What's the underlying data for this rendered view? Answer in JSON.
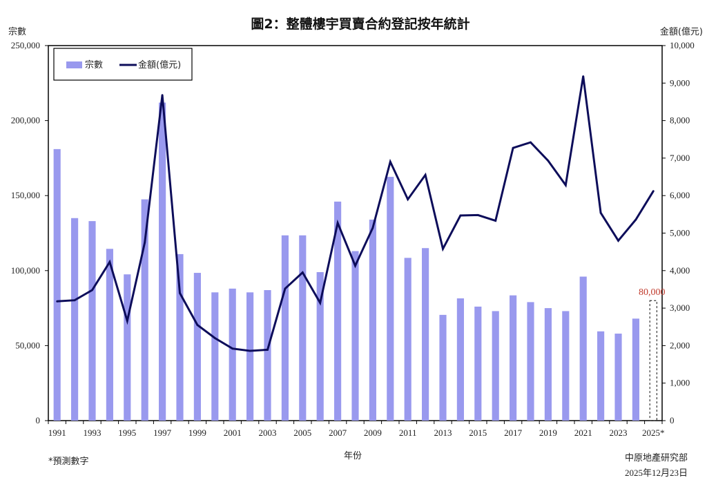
{
  "chart_data": {
    "type": "bar-line",
    "title": "圖2：整體樓宇買賣合約登記按年統計",
    "xlabel": "年份",
    "ylabel_left": "宗數",
    "ylabel_right": "金額(億元)",
    "ylim_left": [
      0,
      250000
    ],
    "ylim_right": [
      0,
      10000
    ],
    "yticks_left": [
      "0",
      "50,000",
      "100,000",
      "150,000",
      "200,000",
      "250,000"
    ],
    "yticks_right": [
      "0",
      "1,000",
      "2,000",
      "3,000",
      "4,000",
      "5,000",
      "6,000",
      "7,000",
      "8,000",
      "9,000",
      "10,000"
    ],
    "x_tick_labels": [
      "1991",
      "1993",
      "1995",
      "1997",
      "1999",
      "2001",
      "2003",
      "2005",
      "2007",
      "2009",
      "2011",
      "2013",
      "2015",
      "2017",
      "2019",
      "2021",
      "2023",
      "2025*"
    ],
    "categories": [
      "1991",
      "1992",
      "1993",
      "1994",
      "1995",
      "1996",
      "1997",
      "1998",
      "1999",
      "2000",
      "2001",
      "2002",
      "2003",
      "2004",
      "2005",
      "2006",
      "2007",
      "2008",
      "2009",
      "2010",
      "2011",
      "2012",
      "2013",
      "2014",
      "2015",
      "2016",
      "2017",
      "2018",
      "2019",
      "2020",
      "2021",
      "2022",
      "2023",
      "2024",
      "2025*"
    ],
    "series": [
      {
        "name": "宗數",
        "kind": "bar",
        "axis": "left",
        "color": "#9999ee",
        "values": [
          181000,
          135000,
          133000,
          114500,
          97500,
          147500,
          212000,
          111000,
          98500,
          85500,
          88000,
          85500,
          87000,
          123500,
          123500,
          99000,
          146000,
          113000,
          134000,
          162500,
          108500,
          115000,
          70500,
          81500,
          76000,
          73000,
          83500,
          79000,
          75000,
          73000,
          96000,
          59500,
          58000,
          68000,
          80000
        ]
      },
      {
        "name": "金額(億元)",
        "kind": "line",
        "axis": "right",
        "color": "#0d0d5a",
        "values": [
          3180,
          3210,
          3480,
          4230,
          2660,
          4750,
          8680,
          3400,
          2550,
          2200,
          1920,
          1860,
          1890,
          3520,
          3950,
          3140,
          5270,
          4130,
          5140,
          6900,
          5900,
          6550,
          4580,
          5470,
          5480,
          5330,
          7270,
          7420,
          6930,
          6280,
          9180,
          5540,
          4800,
          5360,
          6120
        ]
      }
    ],
    "forecast_index": 34,
    "forecast_label": "80,000",
    "forecast_color": "#c0392b",
    "legend_position": "top-left",
    "grid": false
  },
  "footnote": "*預測數字",
  "source": "中原地產研究部",
  "date": "2025年12月23日"
}
